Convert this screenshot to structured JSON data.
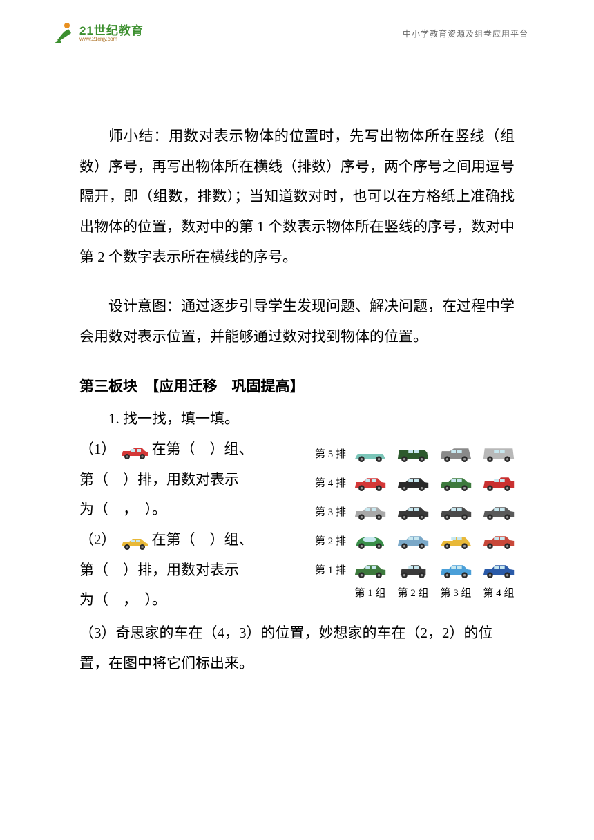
{
  "header": {
    "logo_main": "21世纪教育",
    "logo_sub": "www.21cnjy.com",
    "subtitle": "中小学教育资源及组卷应用平台"
  },
  "logo_colors": {
    "green": "#3b8f2e",
    "orange": "#e89020",
    "brown": "#b07830"
  },
  "paragraphs": {
    "summary": "师小结：用数对表示物体的位置时，先写出物体所在竖线（组数）序号，再写出物体所在横线（排数）序号，两个序号之间用逗号隔开，即（组数，排数）；当知道数对时，也可以在方格纸上准确找出物体的位置，数对中的第 1 个数表示物体所在竖线的序号，数对中第 2 个数字表示所在横线的序号。",
    "intent": "设计意图：通过逐步引导学生发现问题、解决问题，在过程中学会用数对表示位置，并能够通过数对找到物体的位置。"
  },
  "section": {
    "title": "第三板块　【应用迁移　巩固提高】",
    "q1_intro": "1. 找一找，填一填。",
    "q1_1_pre": "（1）",
    "q1_1_post": "在第（　）组、",
    "q1_line2": "第（　）排，用数对表示",
    "q1_line3": "为（　，　）。",
    "q1_2_pre": "（2）",
    "q1_2_post": "在第（　）组、",
    "q3": "（3）奇思家的车在（4，3）的位置，妙想家的车在（2，2）的位置，在图中将它们标出来。"
  },
  "car_grid": {
    "row_labels": [
      "第 5 排",
      "第 4 排",
      "第 3 排",
      "第 2 排",
      "第 1 排"
    ],
    "col_labels": [
      "第 1 组",
      "第 2 组",
      "第 3 组",
      "第 4 组"
    ],
    "cars": [
      [
        {
          "body": "#7ac5b8",
          "type": "convertible"
        },
        {
          "body": "#2d5a2d",
          "type": "suv"
        },
        {
          "body": "#8a8a8a",
          "type": "minivan"
        },
        {
          "body": "#b8b8b8",
          "type": "van"
        }
      ],
      [
        {
          "body": "#d43838",
          "type": "sedan"
        },
        {
          "body": "#2a2a2a",
          "type": "sedan"
        },
        {
          "body": "#3d7a3d",
          "type": "sedan"
        },
        {
          "body": "#c93030",
          "type": "pickup"
        }
      ],
      [
        {
          "body": "#a8a8a8",
          "type": "sedan"
        },
        {
          "body": "#3a3a3a",
          "type": "sedan"
        },
        {
          "body": "#4a4a4a",
          "type": "sedan"
        },
        {
          "body": "#5a5a5a",
          "type": "sedan"
        }
      ],
      [
        {
          "body": "#3a8f4a",
          "type": "beetle"
        },
        {
          "body": "#7aa8c8",
          "type": "sedan"
        },
        {
          "body": "#e8b838",
          "type": "sport"
        },
        {
          "body": "#c8483a",
          "type": "sedan"
        }
      ],
      [
        {
          "body": "#3d7a3d",
          "type": "sedan"
        },
        {
          "body": "#3a3a3a",
          "type": "compact"
        },
        {
          "body": "#4a9fd8",
          "type": "sedan"
        },
        {
          "body": "#2a5aa8",
          "type": "sedan"
        }
      ]
    ]
  },
  "inline_cars": {
    "red": "#d43838",
    "yellow": "#e8b838"
  },
  "styles": {
    "page_bg": "#ffffff",
    "text_color": "#000000",
    "body_fontsize": 21,
    "line_height": 2.08,
    "header_fontsize": 12,
    "header_color": "#6a6a6a"
  }
}
